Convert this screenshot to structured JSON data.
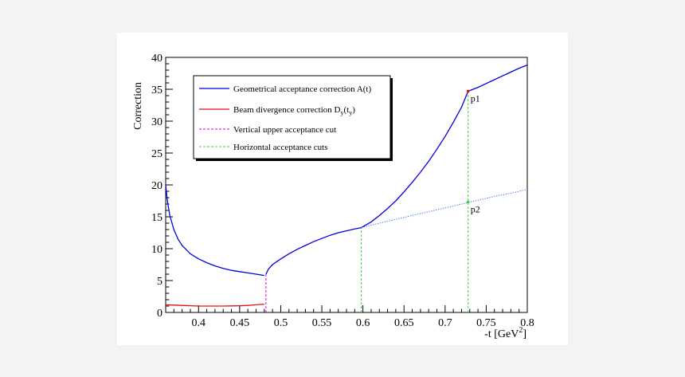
{
  "chart_data": {
    "type": "line",
    "title": "",
    "xlabel": "-t [GeV",
    "xlabel_sup": "2",
    "xlabel_close": "]",
    "ylabel": "Correction",
    "xlim": [
      0.36,
      0.8
    ],
    "ylim": [
      0,
      40
    ],
    "x_ticks": [
      0.4,
      0.45,
      0.5,
      0.55,
      0.6,
      0.65,
      0.7,
      0.75,
      0.8
    ],
    "x_tick_labels": [
      "0.4",
      "0.45",
      "0.5",
      "0.55",
      "0.6",
      "0.65",
      "0.7",
      "0.75",
      "0.8"
    ],
    "y_ticks": [
      0,
      5,
      10,
      15,
      20,
      25,
      30,
      35,
      40
    ],
    "y_tick_labels": [
      "0",
      "5",
      "10",
      "15",
      "20",
      "25",
      "30",
      "35",
      "40"
    ],
    "grid": false,
    "legend_position": "top-left",
    "legend": [
      {
        "label": "Geometrical acceptance correction A(t)",
        "color": "#0000e0",
        "style": "solid"
      },
      {
        "label": "Beam divergence correction D",
        "sub": "y",
        "tail": "(t",
        "tail_sub": "y",
        "close": ")",
        "color": "#e01010",
        "style": "solid"
      },
      {
        "label": "Vertical upper acceptance cut",
        "color": "#e000e0",
        "style": "dashed"
      },
      {
        "label": "Horizontal acceptance cuts",
        "color": "#40d040",
        "style": "dashed"
      }
    ],
    "series": [
      {
        "color": "#0000e0",
        "style": "solid",
        "x": [
          0.36,
          0.362,
          0.365,
          0.37,
          0.375,
          0.38,
          0.39,
          0.4,
          0.41,
          0.42,
          0.43,
          0.44,
          0.45,
          0.46,
          0.47,
          0.48
        ],
        "y": [
          20.0,
          17.5,
          15.2,
          13.0,
          11.5,
          10.5,
          9.2,
          8.4,
          7.8,
          7.3,
          6.9,
          6.6,
          6.4,
          6.2,
          6.0,
          5.8
        ]
      },
      {
        "color": "#0000e0",
        "style": "solid",
        "x": [
          0.482,
          0.485,
          0.49,
          0.5,
          0.51,
          0.52,
          0.53,
          0.54,
          0.55,
          0.56,
          0.57,
          0.58,
          0.59,
          0.598,
          0.61,
          0.62,
          0.63,
          0.64,
          0.65,
          0.66,
          0.67,
          0.68,
          0.69,
          0.7,
          0.71,
          0.72,
          0.728,
          0.74,
          0.75,
          0.76,
          0.77,
          0.78,
          0.79,
          0.8
        ],
        "y": [
          6.0,
          6.8,
          7.5,
          8.4,
          9.2,
          9.9,
          10.5,
          11.1,
          11.6,
          12.1,
          12.5,
          12.8,
          13.1,
          13.3,
          14.2,
          15.2,
          16.3,
          17.5,
          18.9,
          20.4,
          22.0,
          23.7,
          25.6,
          27.6,
          29.8,
          32.2,
          34.7,
          35.3,
          35.9,
          36.5,
          37.1,
          37.7,
          38.3,
          38.8
        ]
      },
      {
        "color": "#e01010",
        "style": "solid",
        "x": [
          0.36,
          0.37,
          0.38,
          0.39,
          0.4,
          0.41,
          0.42,
          0.43,
          0.44,
          0.45,
          0.46,
          0.47,
          0.48
        ],
        "y": [
          1.2,
          1.15,
          1.1,
          1.05,
          1.0,
          1.0,
          1.0,
          1.0,
          1.02,
          1.05,
          1.1,
          1.2,
          1.3
        ]
      },
      {
        "color": "#5080ff",
        "style": "dotted",
        "x": [
          0.598,
          0.62,
          0.64,
          0.66,
          0.68,
          0.7,
          0.72,
          0.74,
          0.76,
          0.78,
          0.8
        ],
        "y": [
          13.3,
          14.0,
          14.6,
          15.2,
          15.8,
          16.4,
          17.0,
          17.6,
          18.2,
          18.7,
          19.3
        ]
      }
    ],
    "vertical_cuts": [
      {
        "x": 0.482,
        "y_top": 6.0,
        "color": "#e000e0"
      },
      {
        "x": 0.598,
        "y_top": 13.3,
        "color": "#40d040"
      },
      {
        "x": 0.728,
        "y_top": 34.7,
        "color": "#40d040"
      }
    ],
    "markers": [
      {
        "label": "p1",
        "x": 0.728,
        "y": 34.7,
        "color": "#e01010"
      },
      {
        "label": "p2",
        "x": 0.728,
        "y": 17.3,
        "color": "#40d040"
      }
    ]
  }
}
